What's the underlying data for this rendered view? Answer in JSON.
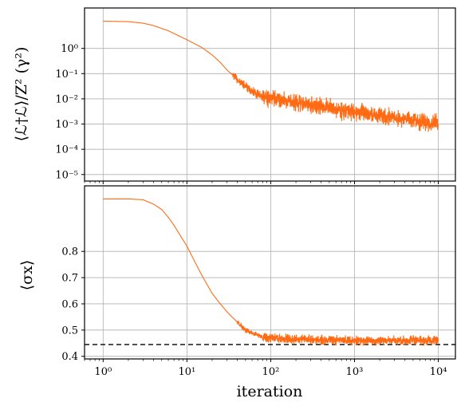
{
  "chart_data": [
    {
      "type": "line",
      "panel": "top",
      "ylabel": "⟨ℒ†ℒ⟩/Z²   (γ²)",
      "xlabel": "",
      "xscale": "log",
      "yscale": "log",
      "xlim": [
        0.6,
        16000
      ],
      "ylim": [
        5.5e-06,
        40
      ],
      "grid": true,
      "color": "#ff6a13",
      "xticks": [
        1,
        10,
        100,
        1000,
        10000
      ],
      "yticks": [
        1e-05,
        0.0001,
        0.001,
        0.01,
        0.1,
        1
      ],
      "ytick_labels": [
        "10⁻⁵",
        "10⁻⁴",
        "10⁻³",
        "10⁻²",
        "10⁻¹",
        "10⁰"
      ],
      "series": [
        {
          "x": [
            1,
            2,
            3,
            4,
            6,
            10,
            15,
            20,
            25,
            30,
            40,
            50,
            60,
            70,
            80,
            90,
            100,
            150,
            200,
            300,
            500,
            700,
            1000,
            2000,
            3000,
            5000,
            7000,
            10000
          ],
          "y": [
            12,
            11.5,
            10,
            8,
            5,
            2.2,
            1.1,
            0.55,
            0.28,
            0.14,
            0.06,
            0.03,
            0.02,
            0.015,
            0.012,
            0.011,
            0.01,
            0.009,
            0.007,
            0.0055,
            0.0045,
            0.0035,
            0.003,
            0.0022,
            0.0018,
            0.0014,
            0.0012,
            0.001
          ],
          "noise_band": [
            {
              "x_from": 35,
              "x_to": 80,
              "decades": 0.28
            },
            {
              "x_from": 80,
              "x_to": 10000,
              "decades": 0.5
            }
          ]
        }
      ]
    },
    {
      "type": "line",
      "panel": "bottom",
      "ylabel": "⟨σx⟩",
      "xlabel": "iteration",
      "xscale": "log",
      "yscale": "linear",
      "xlim": [
        0.6,
        16000
      ],
      "ylim": [
        0.39,
        1.05
      ],
      "grid": true,
      "color": "#ff6a13",
      "xticks": [
        1,
        10,
        100,
        1000,
        10000
      ],
      "xtick_labels": [
        "10⁰",
        "10¹",
        "10²",
        "10³",
        "10⁴"
      ],
      "yticks": [
        0.4,
        0.5,
        0.6,
        0.7,
        0.8
      ],
      "ytick_labels": [
        "0.4",
        "0.5",
        "0.6",
        "0.7",
        "0.8"
      ],
      "reference_line": {
        "y": 0.445,
        "style": "dashed",
        "color": "#000000"
      },
      "series": [
        {
          "x": [
            1,
            2,
            3,
            4,
            5,
            6,
            7,
            8,
            10,
            12,
            15,
            20,
            25,
            30,
            40,
            50,
            60,
            70,
            80,
            90,
            100,
            200,
            500,
            1000,
            3000,
            10000
          ],
          "y": [
            1.0,
            1.0,
            0.997,
            0.98,
            0.96,
            0.93,
            0.9,
            0.87,
            0.82,
            0.77,
            0.71,
            0.64,
            0.6,
            0.57,
            0.53,
            0.5,
            0.49,
            0.48,
            0.475,
            0.47,
            0.47,
            0.465,
            0.462,
            0.46,
            0.46,
            0.46
          ],
          "noise_band": [
            {
              "x_from": 40,
              "x_to": 80,
              "amplitude": 0.012
            },
            {
              "x_from": 80,
              "x_to": 10000,
              "amplitude": 0.022
            }
          ]
        }
      ]
    }
  ]
}
